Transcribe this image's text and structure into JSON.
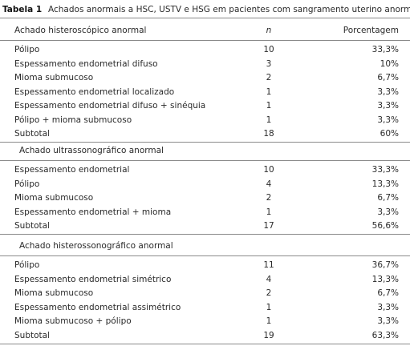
{
  "table": {
    "label": "Tabela 1",
    "title": "Achados anormais a HSC, USTV e HSG em pacientes com sangramento uterino anormal.",
    "columns": [
      "n",
      "Porcentagem"
    ],
    "sections": [
      {
        "header": "Achado histeroscópico anormal",
        "rows": [
          [
            "Pólipo",
            "10",
            "33,3%"
          ],
          [
            "Espessamento endometrial difuso",
            "3",
            "10%"
          ],
          [
            "Mioma submucoso",
            "2",
            "6,7%"
          ],
          [
            "Espessamento endometrial localizado",
            "1",
            "3,3%"
          ],
          [
            "Espessamento endometrial difuso + sinéquia",
            "1",
            "3,3%"
          ],
          [
            "Pólipo + mioma submucoso",
            "1",
            "3,3%"
          ],
          [
            "Subtotal",
            "18",
            "60%"
          ]
        ]
      },
      {
        "header": "Achado ultrassonográfico anormal",
        "rows": [
          [
            "Espessamento endometrial",
            "10",
            "33,3%"
          ],
          [
            "Pólipo",
            "4",
            "13,3%"
          ],
          [
            "Mioma submucoso",
            "2",
            "6,7%"
          ],
          [
            "Espessamento endometrial + mioma",
            "1",
            "3,3%"
          ],
          [
            "Subtotal",
            "17",
            "56,6%"
          ]
        ]
      },
      {
        "header": "Achado histerossonográfico anormal",
        "rows": [
          [
            "Pólipo",
            "11",
            "36,7%"
          ],
          [
            "Espessamento endometrial simétrico",
            "4",
            "13,3%"
          ],
          [
            "Mioma submucoso",
            "2",
            "6,7%"
          ],
          [
            "Espessamento endometrial assimétrico",
            "1",
            "3,3%"
          ],
          [
            "Mioma submucoso + pólipo",
            "1",
            "3,3%"
          ],
          [
            "Subtotal",
            "19",
            "63,3%"
          ]
        ]
      }
    ]
  }
}
